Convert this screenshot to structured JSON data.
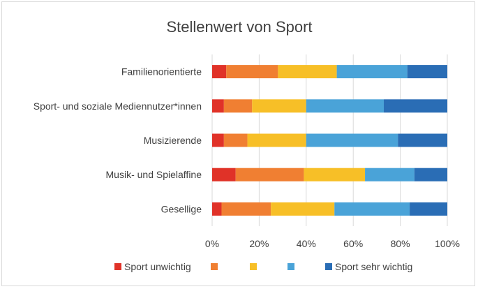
{
  "chart_data": {
    "type": "bar",
    "orientation": "horizontal",
    "stacked": "percent",
    "title": "Stellenwert von Sport",
    "categories": [
      "Familienorientierte",
      "Sport- und soziale Mediennutzer*innen",
      "Musizierende",
      "Musik- und Spielaffine",
      "Gesellige"
    ],
    "series": [
      {
        "name": "Sport unwichtig",
        "color": "#e03228",
        "values": [
          6,
          5,
          5,
          10,
          4
        ]
      },
      {
        "color": "#f07f32",
        "values": [
          22,
          12,
          10,
          29,
          21
        ]
      },
      {
        "color": "#f7bf27",
        "values": [
          25,
          23,
          25,
          26,
          27
        ]
      },
      {
        "color": "#4aa3d8",
        "values": [
          30,
          33,
          39,
          21,
          32
        ]
      },
      {
        "name": "Sport sehr wichtig",
        "color": "#2a6db5",
        "values": [
          17,
          27,
          21,
          14,
          16
        ]
      }
    ],
    "xlim": [
      0,
      100
    ],
    "xticks": [
      "0%",
      "20%",
      "40%",
      "60%",
      "80%",
      "100%"
    ],
    "grid": true,
    "legend": "bottom"
  }
}
